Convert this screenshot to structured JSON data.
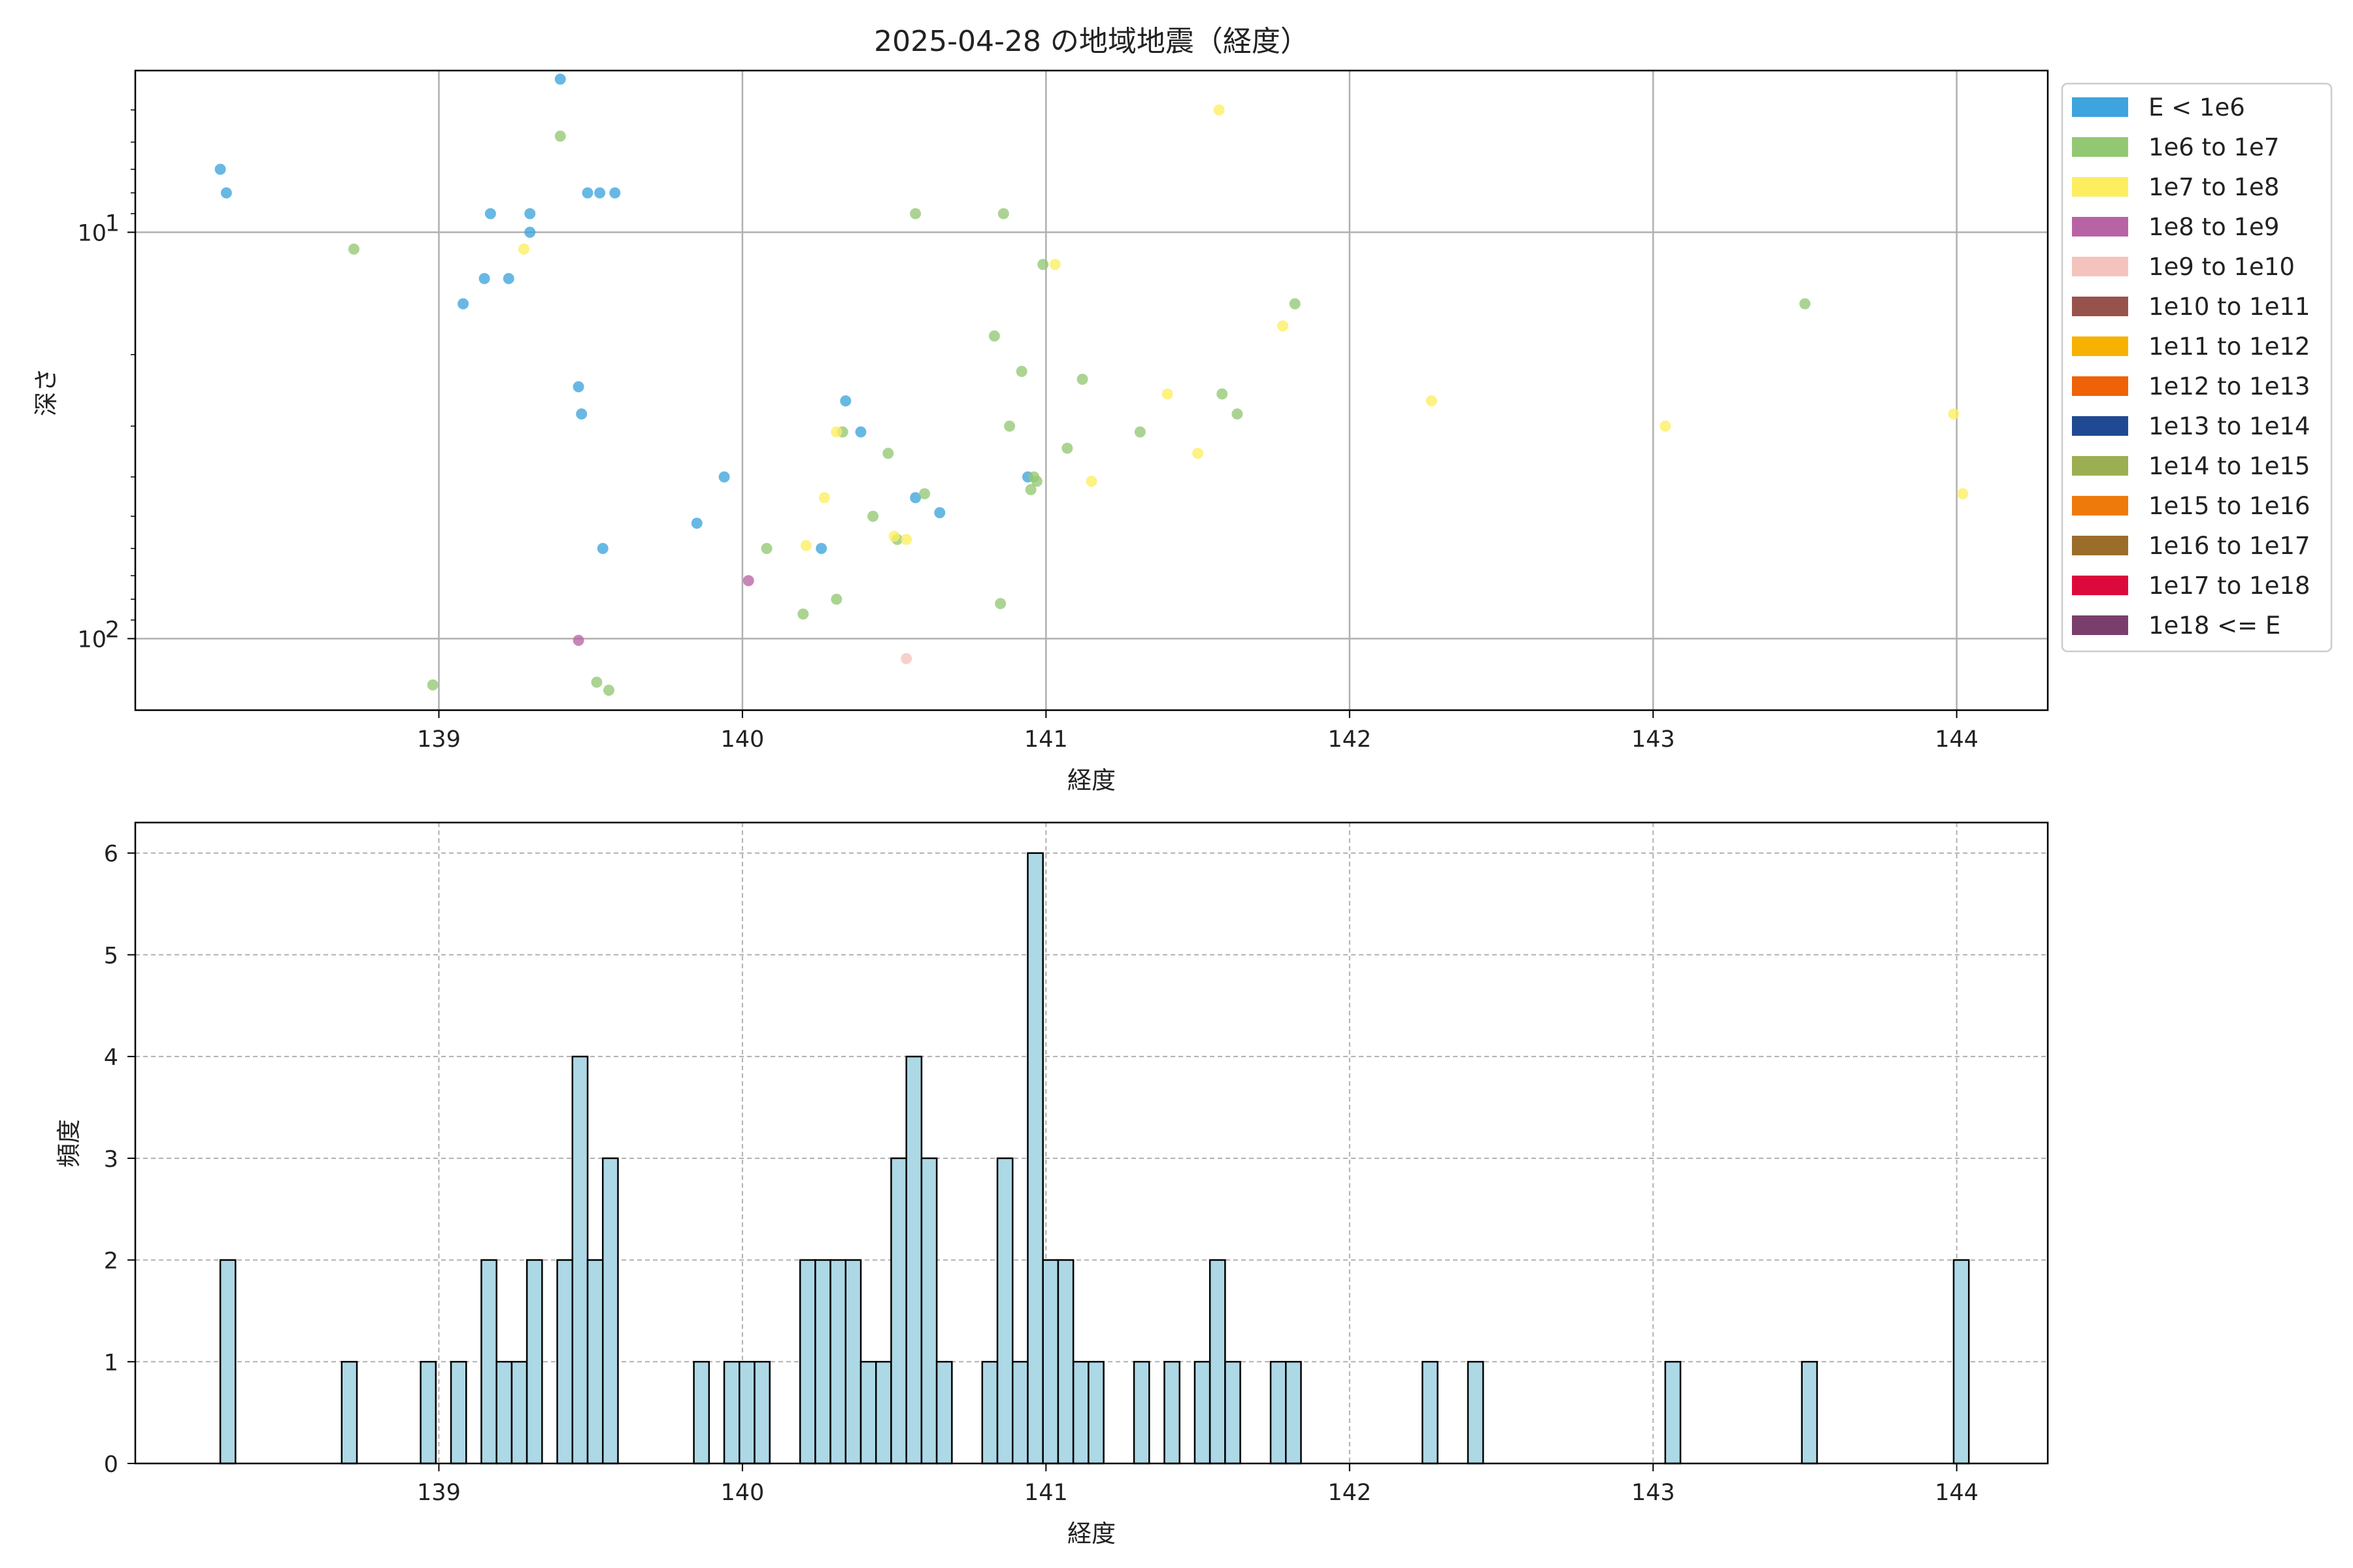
{
  "chart_data": [
    {
      "type": "scatter",
      "title": "2025-04-28 の地域地震（経度）",
      "xlabel": "経度",
      "ylabel": "深さ",
      "xlim": [
        138.0,
        144.3
      ],
      "ylim": [
        4.0,
        150.0
      ],
      "yscale": "log",
      "yaxis_inverted": true,
      "x_ticks": [
        139,
        140,
        141,
        142,
        143,
        144
      ],
      "y_ticks": [
        {
          "value": 10,
          "label": "10",
          "exp": "1"
        },
        {
          "value": 100,
          "label": "10",
          "exp": "2"
        }
      ],
      "grid": true,
      "legend_position": "outside-right",
      "legend": [
        {
          "label": "E < 1e6",
          "color": "#3ea4dd"
        },
        {
          "label": "1e6 to 1e7",
          "color": "#93c873"
        },
        {
          "label": "1e7 to 1e8",
          "color": "#fdee60"
        },
        {
          "label": "1e8 to 1e9",
          "color": "#b864a4"
        },
        {
          "label": "1e9 to 1e10",
          "color": "#f5c3be"
        },
        {
          "label": "1e10 to 1e11",
          "color": "#98524c"
        },
        {
          "label": "1e11 to 1e12",
          "color": "#f7b201"
        },
        {
          "label": "1e12 to 1e13",
          "color": "#ef6207"
        },
        {
          "label": "1e13 to 1e14",
          "color": "#1f4a93"
        },
        {
          "label": "1e14 to 1e15",
          "color": "#9cae52"
        },
        {
          "label": "1e15 to 1e16",
          "color": "#ef7a0c"
        },
        {
          "label": "1e16 to 1e17",
          "color": "#9b6d2a"
        },
        {
          "label": "1e17 to 1e18",
          "color": "#dc0a3c"
        },
        {
          "label": "1e18 <= E",
          "color": "#7a3e6c"
        }
      ],
      "series": [
        {
          "class": 0,
          "points": [
            [
              138.28,
              7
            ],
            [
              138.3,
              8
            ],
            [
              139.08,
              15
            ],
            [
              139.15,
              13
            ],
            [
              139.23,
              13
            ],
            [
              139.17,
              9
            ],
            [
              139.3,
              9
            ],
            [
              139.3,
              10
            ],
            [
              139.4,
              4.2
            ],
            [
              139.49,
              8
            ],
            [
              139.53,
              8
            ],
            [
              139.58,
              8
            ],
            [
              139.46,
              24
            ],
            [
              139.47,
              28
            ],
            [
              139.54,
              60
            ],
            [
              139.85,
              52
            ],
            [
              139.94,
              40
            ],
            [
              140.26,
              60
            ],
            [
              140.34,
              26
            ],
            [
              140.39,
              31
            ],
            [
              140.57,
              45
            ],
            [
              140.65,
              49
            ],
            [
              140.94,
              40
            ]
          ]
        },
        {
          "class": 1,
          "points": [
            [
              138.72,
              11
            ],
            [
              139.4,
              5.8
            ],
            [
              138.98,
              130
            ],
            [
              139.52,
              128
            ],
            [
              139.56,
              134
            ],
            [
              140.08,
              60
            ],
            [
              140.2,
              87
            ],
            [
              140.31,
              80
            ],
            [
              140.33,
              31
            ],
            [
              140.43,
              50
            ],
            [
              140.48,
              35
            ],
            [
              140.51,
              57
            ],
            [
              140.57,
              9
            ],
            [
              140.6,
              44
            ],
            [
              140.83,
              18
            ],
            [
              140.86,
              9
            ],
            [
              140.88,
              30
            ],
            [
              140.85,
              82
            ],
            [
              140.92,
              22
            ],
            [
              140.96,
              40
            ],
            [
              140.97,
              41
            ],
            [
              140.95,
              43
            ],
            [
              140.99,
              12
            ],
            [
              141.07,
              34
            ],
            [
              141.12,
              23
            ],
            [
              141.31,
              31
            ],
            [
              141.58,
              25
            ],
            [
              141.63,
              28
            ],
            [
              141.82,
              15
            ],
            [
              143.5,
              15
            ]
          ]
        },
        {
          "class": 2,
          "points": [
            [
              139.28,
              11
            ],
            [
              140.21,
              59
            ],
            [
              140.27,
              45
            ],
            [
              140.31,
              31
            ],
            [
              140.5,
              56
            ],
            [
              140.54,
              57
            ],
            [
              141.03,
              12
            ],
            [
              141.15,
              41
            ],
            [
              141.4,
              25
            ],
            [
              141.5,
              35
            ],
            [
              141.57,
              5
            ],
            [
              141.78,
              17
            ],
            [
              142.27,
              26
            ],
            [
              143.04,
              30
            ],
            [
              143.99,
              28
            ],
            [
              144.02,
              44
            ]
          ]
        },
        {
          "class": 3,
          "points": [
            [
              140.02,
              72
            ],
            [
              139.46,
              101
            ]
          ]
        },
        {
          "class": 4,
          "points": [
            [
              140.54,
              112
            ]
          ]
        }
      ]
    },
    {
      "type": "bar",
      "title": "",
      "xlabel": "経度",
      "ylabel": "頻度",
      "xlim": [
        138.0,
        144.3
      ],
      "ylim": [
        0,
        6.3
      ],
      "x_ticks": [
        139,
        140,
        141,
        142,
        143,
        144
      ],
      "y_ticks": [
        0,
        1,
        2,
        3,
        4,
        5,
        6
      ],
      "grid": true,
      "bar_color": "#add8e6",
      "bin_width": 0.05,
      "bins": [
        {
          "start": 138.28,
          "count": 2
        },
        {
          "start": 138.68,
          "count": 1
        },
        {
          "start": 138.94,
          "count": 1
        },
        {
          "start": 139.04,
          "count": 1
        },
        {
          "start": 139.14,
          "count": 2
        },
        {
          "start": 139.19,
          "count": 1
        },
        {
          "start": 139.24,
          "count": 1
        },
        {
          "start": 139.29,
          "count": 2
        },
        {
          "start": 139.39,
          "count": 2
        },
        {
          "start": 139.44,
          "count": 4
        },
        {
          "start": 139.49,
          "count": 2
        },
        {
          "start": 139.54,
          "count": 3
        },
        {
          "start": 139.84,
          "count": 1
        },
        {
          "start": 139.94,
          "count": 1
        },
        {
          "start": 139.99,
          "count": 1
        },
        {
          "start": 140.04,
          "count": 1
        },
        {
          "start": 140.19,
          "count": 2
        },
        {
          "start": 140.24,
          "count": 2
        },
        {
          "start": 140.29,
          "count": 2
        },
        {
          "start": 140.34,
          "count": 2
        },
        {
          "start": 140.39,
          "count": 1
        },
        {
          "start": 140.44,
          "count": 1
        },
        {
          "start": 140.49,
          "count": 3
        },
        {
          "start": 140.54,
          "count": 4
        },
        {
          "start": 140.59,
          "count": 3
        },
        {
          "start": 140.64,
          "count": 1
        },
        {
          "start": 140.79,
          "count": 1
        },
        {
          "start": 140.84,
          "count": 3
        },
        {
          "start": 140.89,
          "count": 1
        },
        {
          "start": 140.94,
          "count": 6
        },
        {
          "start": 140.99,
          "count": 2
        },
        {
          "start": 141.04,
          "count": 2
        },
        {
          "start": 141.09,
          "count": 1
        },
        {
          "start": 141.14,
          "count": 1
        },
        {
          "start": 141.29,
          "count": 1
        },
        {
          "start": 141.39,
          "count": 1
        },
        {
          "start": 141.49,
          "count": 1
        },
        {
          "start": 141.54,
          "count": 2
        },
        {
          "start": 141.59,
          "count": 1
        },
        {
          "start": 141.74,
          "count": 1
        },
        {
          "start": 141.79,
          "count": 1
        },
        {
          "start": 142.24,
          "count": 1
        },
        {
          "start": 142.39,
          "count": 1
        },
        {
          "start": 143.04,
          "count": 1
        },
        {
          "start": 143.49,
          "count": 1
        },
        {
          "start": 143.99,
          "count": 2
        }
      ]
    }
  ]
}
